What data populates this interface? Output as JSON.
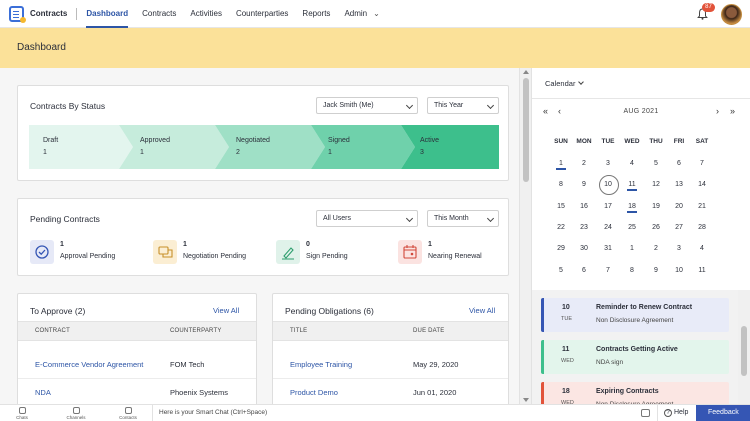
{
  "app": {
    "name": "Contracts",
    "notification_count": "87"
  },
  "nav": {
    "items": [
      "Dashboard",
      "Contracts",
      "Activities",
      "Counterparties",
      "Reports",
      "Admin"
    ],
    "active": "Dashboard"
  },
  "page": {
    "title": "Dashboard"
  },
  "contracts_by_status": {
    "title": "Contracts By Status",
    "owner_filter": "Jack Smith (Me)",
    "period_filter": "This Year",
    "stages": [
      {
        "label": "Draft",
        "count": "1",
        "color": "#e3f5ee"
      },
      {
        "label": "Approved",
        "count": "1",
        "color": "#c6ecdc"
      },
      {
        "label": "Negotiated",
        "count": "2",
        "color": "#9fe0c6"
      },
      {
        "label": "Signed",
        "count": "1",
        "color": "#6fd1ab"
      },
      {
        "label": "Active",
        "count": "3",
        "color": "#3dbf8c"
      }
    ]
  },
  "pending_contracts": {
    "title": "Pending Contracts",
    "users_filter": "All Users",
    "period_filter": "This Month",
    "items": [
      {
        "count": "1",
        "label": "Approval Pending",
        "icon": "check-circle-icon",
        "color": "#e6e9f7"
      },
      {
        "count": "1",
        "label": "Negotiation Pending",
        "icon": "chat-bubbles-icon",
        "color": "#fbeed3"
      },
      {
        "count": "0",
        "label": "Sign Pending",
        "icon": "pen-sign-icon",
        "color": "#e0f2ea"
      },
      {
        "count": "1",
        "label": "Nearing Renewal",
        "icon": "calendar-icon",
        "color": "#fbe3e1"
      }
    ]
  },
  "to_approve": {
    "title": "To Approve (2)",
    "view_all": "View All",
    "columns": [
      "CONTRACT",
      "COUNTERPARTY"
    ],
    "rows": [
      {
        "contract": "E-Commerce Vendor Agreement",
        "counterparty": "FOM Tech"
      },
      {
        "contract": "NDA",
        "counterparty": "Phoenix Systems"
      }
    ]
  },
  "pending_obligations": {
    "title": "Pending Obligations (6)",
    "view_all": "View All",
    "columns": [
      "TITLE",
      "DUE DATE"
    ],
    "rows": [
      {
        "title": "Employee Training",
        "due": "May 29, 2020"
      },
      {
        "title": "Product Demo",
        "due": "Jun 01, 2020"
      }
    ]
  },
  "calendar": {
    "label": "Calendar",
    "month": "AUG 2021",
    "weekdays": [
      "SUN",
      "MON",
      "TUE",
      "WED",
      "THU",
      "FRI",
      "SAT"
    ],
    "weeks": [
      [
        "1",
        "2",
        "3",
        "4",
        "5",
        "6",
        "7"
      ],
      [
        "8",
        "9",
        "10",
        "11",
        "12",
        "13",
        "14"
      ],
      [
        "15",
        "16",
        "17",
        "18",
        "19",
        "20",
        "21"
      ],
      [
        "22",
        "23",
        "24",
        "25",
        "26",
        "27",
        "28"
      ],
      [
        "29",
        "30",
        "31",
        "1",
        "2",
        "3",
        "4"
      ],
      [
        "5",
        "6",
        "7",
        "8",
        "9",
        "10",
        "11"
      ]
    ],
    "marked_days": [
      "1",
      "11",
      "18"
    ],
    "today": "10",
    "events": [
      {
        "day": "10",
        "dow": "TUE",
        "title": "Reminder to Renew Contract",
        "subtitle": "Non Disclosure Agreement",
        "accent": "#3556b4",
        "bg": "#e8ebf8"
      },
      {
        "day": "11",
        "dow": "WED",
        "title": "Contracts Getting Active",
        "subtitle": "NDA sign",
        "accent": "#3dbf8c",
        "bg": "#e3f5ec"
      },
      {
        "day": "18",
        "dow": "WED",
        "title": "Expiring Contracts",
        "subtitle": "Non Disclosure Agreement",
        "accent": "#e2533a",
        "bg": "#fbe6e3"
      }
    ]
  },
  "bottombar": {
    "items": [
      "Chats",
      "Channels",
      "Contacts"
    ],
    "smart_chat_placeholder": "Here is your Smart Chat (Ctrl+Space)",
    "help": "Help",
    "feedback": "Feedback"
  }
}
